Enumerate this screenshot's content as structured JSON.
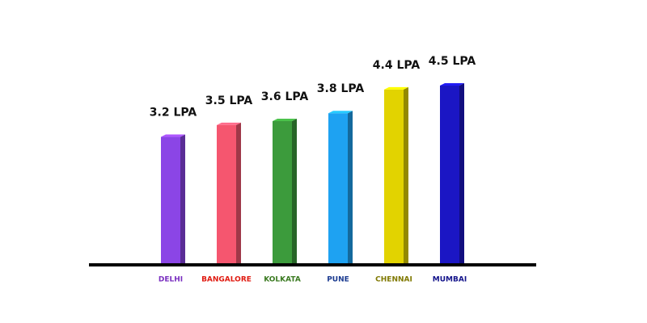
{
  "chart_data": {
    "type": "bar",
    "categories": [
      "DELHI",
      "BANGALORE",
      "KOLKATA",
      "PUNE",
      "CHENNAI",
      "MUMBAI"
    ],
    "values": [
      3.2,
      3.5,
      3.6,
      3.8,
      4.4,
      4.5
    ],
    "value_labels": [
      "3.2 LPA",
      "3.5 LPA",
      "3.6 LPA",
      "3.8 LPA",
      "4.4 LPA",
      "4.5 LPA"
    ],
    "colors": [
      "#8b45e6",
      "#f5566f",
      "#3c9b3c",
      "#1ea2f2",
      "#e2d300",
      "#1b16c4"
    ],
    "label_colors": [
      "#7a2fc0",
      "#e01a10",
      "#3a7a20",
      "#1a3a90",
      "#7f7800",
      "#12128a"
    ]
  }
}
